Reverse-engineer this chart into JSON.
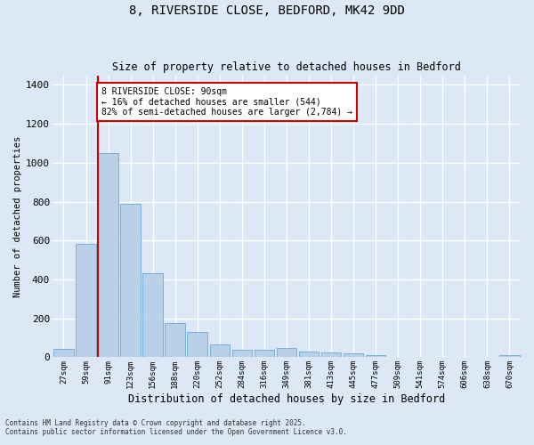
{
  "title_line1": "8, RIVERSIDE CLOSE, BEDFORD, MK42 9DD",
  "title_line2": "Size of property relative to detached houses in Bedford",
  "xlabel": "Distribution of detached houses by size in Bedford",
  "ylabel": "Number of detached properties",
  "categories": [
    "27sqm",
    "59sqm",
    "91sqm",
    "123sqm",
    "156sqm",
    "188sqm",
    "220sqm",
    "252sqm",
    "284sqm",
    "316sqm",
    "349sqm",
    "381sqm",
    "413sqm",
    "445sqm",
    "477sqm",
    "509sqm",
    "541sqm",
    "574sqm",
    "606sqm",
    "638sqm",
    "670sqm"
  ],
  "values": [
    45,
    585,
    1050,
    790,
    430,
    178,
    128,
    68,
    40,
    40,
    48,
    28,
    25,
    18,
    10,
    3,
    0,
    0,
    0,
    0,
    12
  ],
  "bar_color": "#b8d0e8",
  "bar_edge_color": "#6aaad4",
  "background_color": "#dce8f5",
  "grid_color": "#ffffff",
  "fig_background": "#dce8f5",
  "red_line_index": 2,
  "annotation_text": "8 RIVERSIDE CLOSE: 90sqm\n← 16% of detached houses are smaller (544)\n82% of semi-detached houses are larger (2,784) →",
  "annotation_box_color": "#ffffff",
  "annotation_box_edge_color": "#cc0000",
  "ylim": [
    0,
    1450
  ],
  "yticks": [
    0,
    200,
    400,
    600,
    800,
    1000,
    1200,
    1400
  ],
  "footnote1": "Contains HM Land Registry data © Crown copyright and database right 2025.",
  "footnote2": "Contains public sector information licensed under the Open Government Licence v3.0."
}
